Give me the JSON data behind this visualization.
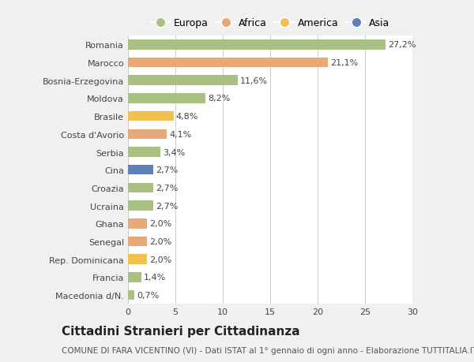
{
  "countries": [
    "Romania",
    "Marocco",
    "Bosnia-Erzegovina",
    "Moldova",
    "Brasile",
    "Costa d'Avorio",
    "Serbia",
    "Cina",
    "Croazia",
    "Ucraina",
    "Ghana",
    "Senegal",
    "Rep. Dominicana",
    "Francia",
    "Macedonia d/N."
  ],
  "values": [
    27.2,
    21.1,
    11.6,
    8.2,
    4.8,
    4.1,
    3.4,
    2.7,
    2.7,
    2.7,
    2.0,
    2.0,
    2.0,
    1.4,
    0.7
  ],
  "labels": [
    "27,2%",
    "21,1%",
    "11,6%",
    "8,2%",
    "4,8%",
    "4,1%",
    "3,4%",
    "2,7%",
    "2,7%",
    "2,7%",
    "2,0%",
    "2,0%",
    "2,0%",
    "1,4%",
    "0,7%"
  ],
  "continents": [
    "Europa",
    "Africa",
    "Europa",
    "Europa",
    "America",
    "Africa",
    "Europa",
    "Asia",
    "Europa",
    "Europa",
    "Africa",
    "Africa",
    "America",
    "Europa",
    "Europa"
  ],
  "colors": {
    "Europa": "#a8c182",
    "Africa": "#e8a878",
    "America": "#f0c050",
    "Asia": "#6080b8"
  },
  "legend_order": [
    "Europa",
    "Africa",
    "America",
    "Asia"
  ],
  "title": "Cittadini Stranieri per Cittadinanza",
  "subtitle": "COMUNE DI FARA VICENTINO (VI) - Dati ISTAT al 1° gennaio di ogni anno - Elaborazione TUTTITALIA.IT",
  "xlim": [
    0,
    30
  ],
  "xticks": [
    0,
    5,
    10,
    15,
    20,
    25,
    30
  ],
  "bg_color": "#f0f0f0",
  "plot_bg_color": "#ffffff",
  "title_fontsize": 11,
  "subtitle_fontsize": 7.5,
  "label_fontsize": 8,
  "tick_fontsize": 8,
  "legend_fontsize": 9
}
